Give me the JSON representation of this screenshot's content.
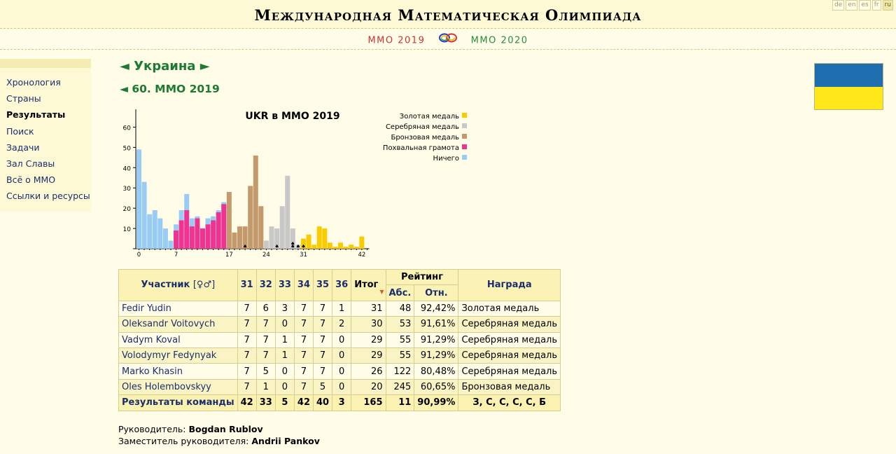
{
  "header": {
    "title": "Международная Математическая Олимпиада",
    "languages": [
      "de",
      "en",
      "es",
      "fr",
      "ru"
    ],
    "active_language": "ru"
  },
  "subnav": {
    "prev": "ММО 2019",
    "next": "ММО 2020"
  },
  "sidebar": {
    "items": [
      {
        "label": "Хронология"
      },
      {
        "label": "Страны"
      },
      {
        "label": "Результаты",
        "current": true
      },
      {
        "label": "Поиск"
      },
      {
        "label": "Задачи"
      },
      {
        "label": "Зал Славы"
      },
      {
        "label": "Всё о ММО"
      },
      {
        "label": "Ссылки и ресурсы"
      }
    ]
  },
  "country": {
    "prev_arrow": "◄",
    "name": "Украина",
    "next_arrow": "►",
    "flag_colors": [
      "#1f6fb0",
      "#ffe81a"
    ]
  },
  "olympiad": {
    "prev_arrow": "◄",
    "label": "60. ММО 2019"
  },
  "chart_data": {
    "type": "bar",
    "title": "UKR в ММО 2019",
    "ylim": [
      0,
      65
    ],
    "yticks": [
      10,
      20,
      30,
      40,
      50,
      60
    ],
    "xticks": [
      0,
      7,
      17,
      24,
      31,
      42
    ],
    "legend_position": "top-right",
    "legend": [
      {
        "name": "Золотая медаль",
        "color": "#f8cc00"
      },
      {
        "name": "Серебряная медаль",
        "color": "#c8c8c8"
      },
      {
        "name": "Бронзовая медаль",
        "color": "#c49a6c"
      },
      {
        "name": "Похвальная грамота",
        "color": "#ee3390"
      },
      {
        "name": "Ничего",
        "color": "#99ccf5"
      }
    ],
    "series": [
      {
        "name": "Ничего",
        "color": "#99ccf5",
        "x": [
          0,
          1,
          2,
          3,
          4,
          5,
          6,
          7,
          8,
          9,
          10,
          11,
          12,
          13,
          14,
          15,
          16
        ],
        "values": [
          49,
          33,
          17,
          19,
          15,
          10,
          4,
          12,
          19,
          27,
          15,
          16,
          10,
          15,
          16,
          19,
          23
        ]
      },
      {
        "name": "Похвальная грамота",
        "color": "#ee3390",
        "x": [
          7,
          8,
          9,
          10,
          11,
          12,
          13,
          14,
          15,
          16
        ],
        "values": [
          9,
          14,
          19,
          11,
          15,
          10,
          12,
          14,
          18,
          22
        ]
      },
      {
        "name": "Бронзовая медаль",
        "color": "#c49a6c",
        "x": [
          17,
          18,
          19,
          20,
          21,
          22,
          23
        ],
        "values": [
          28,
          8,
          11,
          11,
          31,
          46,
          21
        ]
      },
      {
        "name": "Серебряная медаль",
        "color": "#c8c8c8",
        "x": [
          24,
          25,
          26,
          27,
          28,
          29,
          30
        ],
        "values": [
          4,
          11,
          10,
          21,
          36,
          10,
          2
        ]
      },
      {
        "name": "Золотая медаль",
        "color": "#f8cc00",
        "x": [
          31,
          32,
          33,
          34,
          35,
          36,
          37,
          38,
          39,
          40,
          41,
          42
        ],
        "values": [
          5,
          7,
          2,
          11,
          10,
          3,
          1,
          3,
          1,
          2,
          1,
          6
        ]
      }
    ],
    "participant_markers": [
      {
        "x": 20,
        "count": 1
      },
      {
        "x": 26,
        "count": 1
      },
      {
        "x": 29,
        "count": 2
      },
      {
        "x": 30,
        "count": 1
      },
      {
        "x": 31,
        "count": 1
      }
    ]
  },
  "table": {
    "headers": {
      "participant": "Участник",
      "gender_icon": "[♀♂]",
      "problems": [
        "31",
        "32",
        "33",
        "34",
        "35",
        "36"
      ],
      "total": "Итог",
      "rating": "Рейтинг",
      "abs": "Абс.",
      "rel": "Отн.",
      "award": "Награда"
    },
    "rows": [
      {
        "name": "Fedir Yudin",
        "scores": [
          "7",
          "6",
          "3",
          "7",
          "7",
          "1"
        ],
        "total": "31",
        "abs": "48",
        "rel": "92,42%",
        "award": "Золотая медаль"
      },
      {
        "name": "Oleksandr Voitovych",
        "scores": [
          "7",
          "7",
          "0",
          "7",
          "7",
          "2"
        ],
        "total": "30",
        "abs": "53",
        "rel": "91,61%",
        "award": "Серебряная медаль"
      },
      {
        "name": "Vadym Koval",
        "scores": [
          "7",
          "7",
          "1",
          "7",
          "7",
          "0"
        ],
        "total": "29",
        "abs": "55",
        "rel": "91,29%",
        "award": "Серебряная медаль"
      },
      {
        "name": "Volodymyr Fedynyak",
        "scores": [
          "7",
          "7",
          "1",
          "7",
          "7",
          "0"
        ],
        "total": "29",
        "abs": "55",
        "rel": "91,29%",
        "award": "Серебряная медаль"
      },
      {
        "name": "Marko Khasin",
        "scores": [
          "7",
          "5",
          "0",
          "7",
          "7",
          "0"
        ],
        "total": "26",
        "abs": "122",
        "rel": "80,48%",
        "award": "Серебряная медаль"
      },
      {
        "name": "Oles Holembovskyy",
        "scores": [
          "7",
          "1",
          "0",
          "7",
          "5",
          "0"
        ],
        "total": "20",
        "abs": "245",
        "rel": "60,65%",
        "award": "Бронзовая медаль"
      }
    ],
    "team": {
      "label": "Результаты команды",
      "scores": [
        "42",
        "33",
        "5",
        "42",
        "40",
        "3"
      ],
      "total": "165",
      "abs": "11",
      "rel": "90,99%",
      "award": "З, С, С, С, С, Б"
    }
  },
  "leaders": {
    "leader_label": "Руководитель:",
    "leader_name": "Bogdan Rublov",
    "deputy_label": "Заместитель руководителя:",
    "deputy_name": "Andrii Pankov"
  }
}
